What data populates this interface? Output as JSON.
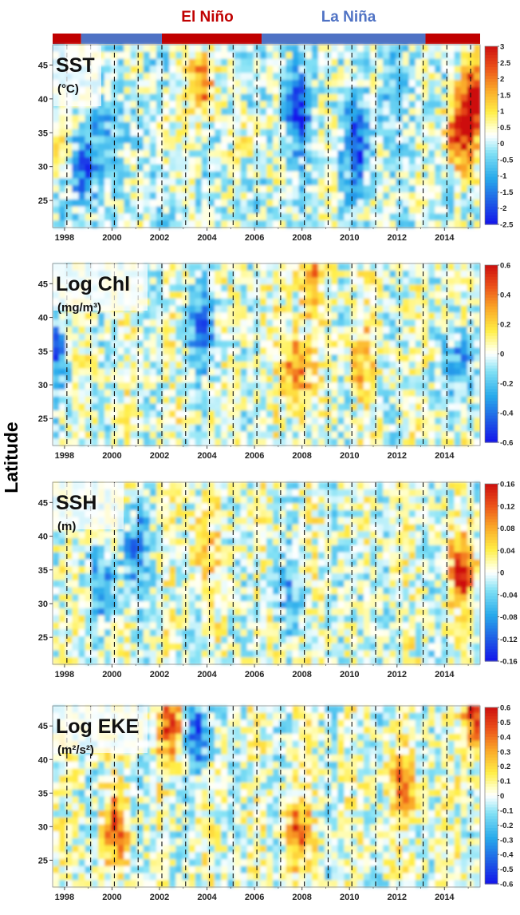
{
  "figure": {
    "ylabel": "Latitude",
    "enso_labels": {
      "el_nino": "El Niño",
      "la_nina": "La Niña"
    },
    "colors": {
      "el_nino": "#c00000",
      "la_nina": "#4f72c4"
    }
  },
  "chart_data": [
    {
      "type": "heatmap",
      "title": "SST",
      "unit_text": "(°C)",
      "xlim": [
        1997.5,
        2015.5
      ],
      "ylim": [
        21,
        48
      ],
      "xticks": [
        1998,
        2000,
        2002,
        2004,
        2006,
        2008,
        2010,
        2012,
        2014
      ],
      "xtick_labels": [
        "1998",
        "2000",
        "2002",
        "2004",
        "2006",
        "2008",
        "2010",
        "2012",
        "2014"
      ],
      "yticks": [
        25,
        30,
        35,
        40,
        45
      ],
      "colorbar": {
        "min": -2.5,
        "max": 3,
        "ticks": [
          3,
          2.5,
          2,
          1.5,
          1,
          0.5,
          0,
          -0.5,
          -1,
          -1.5,
          -2,
          -2.5
        ],
        "labels": [
          "3",
          "2.5",
          "2",
          "1.5",
          "1",
          "0.5",
          "0",
          "-0.5",
          "-1",
          "-1.5",
          "-2",
          "-2.5"
        ]
      },
      "enso_periods": [
        {
          "phase": "el_nino",
          "start": 1997.5,
          "end": 1998.7
        },
        {
          "phase": "la_nina",
          "start": 1998.7,
          "end": 2002.1
        },
        {
          "phase": "el_nino",
          "start": 2002.1,
          "end": 2006.3
        },
        {
          "phase": "la_nina",
          "start": 2006.3,
          "end": 2013.2
        },
        {
          "phase": "el_nino",
          "start": 2013.2,
          "end": 2015.5
        }
      ],
      "winter_lines": [
        1998.1,
        1999.1,
        2000.1,
        2001.1,
        2002.1,
        2003.1,
        2004.1,
        2005.1,
        2006.1,
        2007.1,
        2008.1,
        2009.1,
        2010.1,
        2011.1,
        2012.1,
        2013.1,
        2014.1,
        2015.1
      ],
      "anomaly_features": [
        {
          "year": 1997.8,
          "lat": 34,
          "value": 1.2
        },
        {
          "year": 1998.85,
          "lat": 30,
          "value": -2.0
        },
        {
          "year": 1999.5,
          "lat": 35,
          "value": -0.6
        },
        {
          "year": 2001.0,
          "lat": 35,
          "value": -0.4
        },
        {
          "year": 2002.2,
          "lat": 35,
          "value": 0.6
        },
        {
          "year": 2003.8,
          "lat": 42,
          "value": 2.2
        },
        {
          "year": 2005.8,
          "lat": 33,
          "value": 0.5
        },
        {
          "year": 2007.8,
          "lat": 38,
          "value": -2.0
        },
        {
          "year": 2010.3,
          "lat": 33,
          "value": -2.0
        },
        {
          "year": 2011.7,
          "lat": 40,
          "value": -0.8
        },
        {
          "year": 2014.6,
          "lat": 35,
          "value": 2.9
        },
        {
          "year": 2015.3,
          "lat": 40,
          "value": 2.8
        }
      ]
    },
    {
      "type": "heatmap",
      "title": "Log Chl",
      "unit_text": "(mg/m³)",
      "xlim": [
        1997.5,
        2015.5
      ],
      "ylim": [
        21,
        48
      ],
      "xticks": [
        1998,
        2000,
        2002,
        2004,
        2006,
        2008,
        2010,
        2012,
        2014
      ],
      "xtick_labels": [
        "1998",
        "2000",
        "2002",
        "2004",
        "2006",
        "2008",
        "2010",
        "2012",
        "2014"
      ],
      "yticks": [
        25,
        30,
        35,
        40,
        45
      ],
      "colorbar": {
        "min": -0.6,
        "max": 0.6,
        "ticks": [
          0.6,
          0.4,
          0.2,
          0,
          -0.2,
          -0.4,
          -0.6
        ],
        "labels": [
          "0.6",
          "0.4",
          "0.2",
          "0",
          "-0.2",
          "-0.4",
          "-0.6"
        ]
      },
      "winter_lines": [
        1998.1,
        1999.1,
        2000.1,
        2001.1,
        2002.1,
        2003.1,
        2004.1,
        2005.1,
        2006.1,
        2007.1,
        2008.1,
        2009.1,
        2010.1,
        2011.1,
        2012.1,
        2013.1,
        2014.1,
        2015.1
      ],
      "anomaly_features": [
        {
          "year": 1997.6,
          "lat": 34,
          "value": -0.35
        },
        {
          "year": 2003.8,
          "lat": 38,
          "value": -0.4
        },
        {
          "year": 2007.8,
          "lat": 32,
          "value": 0.45
        },
        {
          "year": 2010.5,
          "lat": 34,
          "value": 0.25
        },
        {
          "year": 2014.7,
          "lat": 33,
          "value": -0.35
        },
        {
          "year": 2008.3,
          "lat": 46,
          "value": 0.3
        }
      ]
    },
    {
      "type": "heatmap",
      "title": "SSH",
      "unit_text": "(m)",
      "xlim": [
        1997.5,
        2015.5
      ],
      "ylim": [
        21,
        48
      ],
      "xticks": [
        1998,
        2000,
        2002,
        2004,
        2006,
        2008,
        2010,
        2012,
        2014
      ],
      "xtick_labels": [
        "1998",
        "2000",
        "2002",
        "2004",
        "2006",
        "2008",
        "2010",
        "2012",
        "2014"
      ],
      "yticks": [
        25,
        30,
        35,
        40,
        45
      ],
      "colorbar": {
        "min": -0.16,
        "max": 0.16,
        "ticks": [
          0.16,
          0.12,
          0.08,
          0.04,
          0,
          -0.04,
          -0.08,
          -0.12,
          -0.16
        ],
        "labels": [
          "0.16",
          "0.12",
          "0.08",
          "0.04",
          "0",
          "-0.04",
          "-0.08",
          "-0.12",
          "-0.16"
        ]
      },
      "winter_lines": [
        1998.1,
        1999.1,
        2000.1,
        2001.1,
        2002.1,
        2003.1,
        2004.1,
        2005.1,
        2006.1,
        2007.1,
        2008.1,
        2009.1,
        2010.1,
        2011.1,
        2012.1,
        2013.1,
        2014.1,
        2015.1
      ],
      "anomaly_features": [
        {
          "year": 1999.7,
          "lat": 33,
          "value": -0.08
        },
        {
          "year": 2001.0,
          "lat": 38,
          "value": -0.1
        },
        {
          "year": 2003.8,
          "lat": 38,
          "value": 0.06
        },
        {
          "year": 2007.5,
          "lat": 32,
          "value": -0.06
        },
        {
          "year": 2010.5,
          "lat": 30,
          "value": -0.03
        },
        {
          "year": 2014.8,
          "lat": 35,
          "value": 0.14
        }
      ]
    },
    {
      "type": "heatmap",
      "title": "Log EKE",
      "unit_text": "(m²/s²)",
      "xlim": [
        1997.5,
        2015.5
      ],
      "ylim": [
        21,
        48
      ],
      "xticks": [
        1998,
        2000,
        2002,
        2004,
        2006,
        2008,
        2010,
        2012,
        2014
      ],
      "xtick_labels": [
        "1998",
        "2000",
        "2002",
        "2004",
        "2006",
        "2008",
        "2010",
        "2012",
        "2014"
      ],
      "yticks": [
        25,
        30,
        35,
        40,
        45
      ],
      "colorbar": {
        "min": -0.6,
        "max": 0.6,
        "ticks": [
          0.6,
          0.5,
          0.4,
          0.3,
          0.2,
          0.1,
          0,
          -0.1,
          -0.2,
          -0.3,
          -0.4,
          -0.5,
          -0.6
        ],
        "labels": [
          "0.6",
          "0.5",
          "0.4",
          "0.3",
          "0.2",
          "0.1",
          "0",
          "-0.1",
          "-0.2",
          "-0.3",
          "-0.4",
          "-0.5",
          "-0.6"
        ]
      },
      "winter_lines": [
        1998.1,
        1999.1,
        2000.1,
        2001.1,
        2002.1,
        2003.1,
        2004.1,
        2005.1,
        2006.1,
        2007.1,
        2008.1,
        2009.1,
        2010.1,
        2011.1,
        2012.1,
        2013.1,
        2014.1,
        2015.1
      ],
      "anomaly_features": [
        {
          "year": 2002.5,
          "lat": 46,
          "value": 0.5
        },
        {
          "year": 2003.6,
          "lat": 44,
          "value": -0.45
        },
        {
          "year": 2007.8,
          "lat": 29,
          "value": 0.4
        },
        {
          "year": 2012.2,
          "lat": 36,
          "value": 0.35
        },
        {
          "year": 2015.3,
          "lat": 47,
          "value": 0.6
        },
        {
          "year": 2000.2,
          "lat": 30,
          "value": 0.4
        }
      ]
    }
  ]
}
